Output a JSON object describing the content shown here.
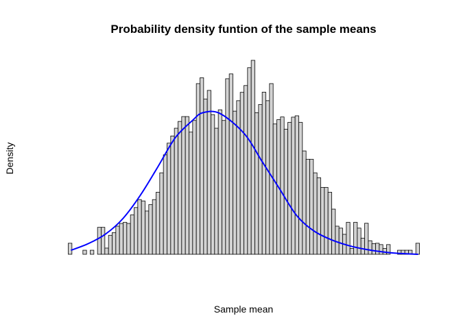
{
  "chart_data": {
    "type": "bar",
    "title": "Probability density funtion of the sample means",
    "xlabel": "Sample mean",
    "ylabel": "Density",
    "axes_shown": false,
    "grid": false,
    "bar_fill": "#d3d3d3",
    "bar_stroke": "#000000",
    "curve_color": "#0000ff",
    "bins": 96,
    "ylim": [
      0,
      1.0
    ],
    "histogram_density": [
      0.057,
      0,
      0,
      0,
      0.021,
      0,
      0.021,
      0,
      0.139,
      0.139,
      0.032,
      0.098,
      0.112,
      0.145,
      0.159,
      0.165,
      0.159,
      0.203,
      0.241,
      0.282,
      0.275,
      0.223,
      0.256,
      0.282,
      0.32,
      0.42,
      0.513,
      0.573,
      0.61,
      0.65,
      0.685,
      0.71,
      0.71,
      0.63,
      0.69,
      0.88,
      0.91,
      0.8,
      0.845,
      0.72,
      0.65,
      0.745,
      0.69,
      0.905,
      0.93,
      0.738,
      0.792,
      0.835,
      0.87,
      0.962,
      1.0,
      0.73,
      0.772,
      0.836,
      0.792,
      0.88,
      0.672,
      0.694,
      0.708,
      0.645,
      0.68,
      0.707,
      0.714,
      0.68,
      0.533,
      0.49,
      0.49,
      0.42,
      0.395,
      0.345,
      0.345,
      0.32,
      0.233,
      0.145,
      0.135,
      0.103,
      0.165,
      0.03,
      0.165,
      0.135,
      0.083,
      0.16,
      0.07,
      0.055,
      0.057,
      0.05,
      0.03,
      0.05,
      0,
      0,
      0.021,
      0.021,
      0.021,
      0.021,
      0,
      0.057
    ],
    "density_curve": [
      [
        0.0,
        0.021
      ],
      [
        0.05,
        0.055
      ],
      [
        0.1,
        0.105
      ],
      [
        0.15,
        0.185
      ],
      [
        0.2,
        0.305
      ],
      [
        0.25,
        0.45
      ],
      [
        0.3,
        0.6
      ],
      [
        0.35,
        0.69
      ],
      [
        0.38,
        0.73
      ],
      [
        0.43,
        0.725
      ],
      [
        0.5,
        0.62
      ],
      [
        0.55,
        0.48
      ],
      [
        0.6,
        0.34
      ],
      [
        0.65,
        0.2
      ],
      [
        0.7,
        0.12
      ],
      [
        0.75,
        0.075
      ],
      [
        0.8,
        0.045
      ],
      [
        0.85,
        0.025
      ],
      [
        0.9,
        0.012
      ],
      [
        0.95,
        0.004
      ],
      [
        1.0,
        0.0
      ]
    ]
  }
}
